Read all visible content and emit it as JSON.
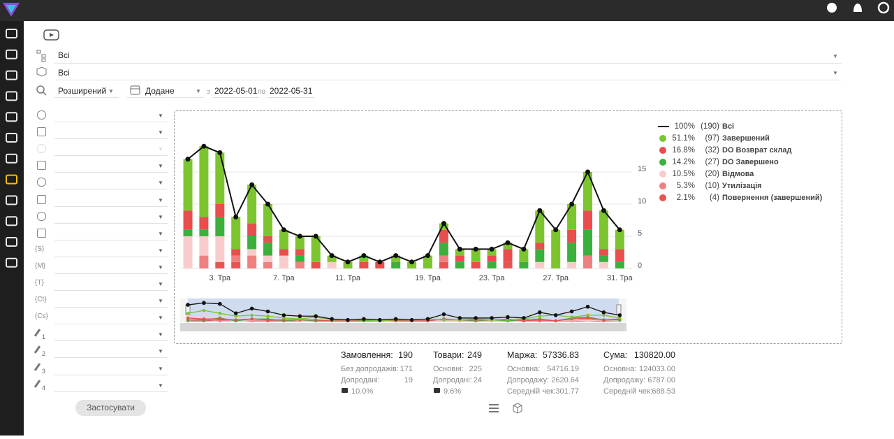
{
  "filters": {
    "scope": "Всі",
    "product": "Всі",
    "search_mode": "Розширений",
    "date_field": "Додане",
    "from_label": "з",
    "from": "2022-05-01",
    "to_label": "по",
    "to": "2022-05-31",
    "icon_labels": [
      "{S}",
      "{M}",
      "{T}",
      "{Ct}",
      "{Cs}",
      "1",
      "2",
      "3",
      "4"
    ],
    "apply": "Застосувати"
  },
  "chart_data": {
    "type": "bar",
    "stacked": true,
    "categories": [
      null,
      null,
      "3. Тра",
      null,
      null,
      null,
      "7. Тра",
      null,
      null,
      null,
      "11. Тра",
      null,
      null,
      null,
      null,
      "19. Тра",
      null,
      null,
      null,
      "23. Тра",
      null,
      null,
      null,
      "27. Тра",
      null,
      null,
      null,
      "31. Тра"
    ],
    "ylim": [
      0,
      21
    ],
    "yticks": [
      0,
      5,
      10,
      15
    ],
    "grid": true,
    "total": {
      "name": "Всі",
      "color": "#111111",
      "share": "100%",
      "count": "(190)",
      "values": [
        17,
        19,
        18,
        8,
        13,
        10,
        6,
        5,
        5,
        2,
        1,
        2,
        1,
        2,
        1,
        2,
        7,
        3,
        3,
        3,
        4,
        3,
        9,
        6,
        10,
        15,
        9,
        6
      ]
    },
    "series": [
      {
        "name": "Завершений",
        "color": "#7dc52e",
        "share": "51.1%",
        "count": "(97)",
        "values": [
          8,
          11,
          8,
          5,
          6,
          5,
          3,
          2,
          4,
          1,
          1,
          1,
          0,
          1,
          1,
          2,
          1,
          1,
          2,
          1,
          1,
          2,
          5,
          6,
          4,
          6,
          6,
          3
        ]
      },
      {
        "name": "DO Возврат склад",
        "color": "#e84e4e",
        "share": "16.8%",
        "count": "(32)",
        "values": [
          3,
          2,
          2,
          1,
          2,
          1,
          1,
          1,
          1,
          0,
          0,
          1,
          1,
          0,
          0,
          0,
          2,
          1,
          1,
          1,
          2,
          0,
          1,
          0,
          2,
          3,
          1,
          2
        ]
      },
      {
        "name": "DO Завершено",
        "color": "#3cb03c",
        "share": "14.2%",
        "count": "(27)",
        "values": [
          1,
          1,
          3,
          0,
          2,
          2,
          0,
          1,
          0,
          0,
          0,
          0,
          0,
          1,
          0,
          0,
          2,
          1,
          0,
          1,
          0,
          1,
          2,
          0,
          3,
          4,
          1,
          1
        ]
      },
      {
        "name": "Відмова",
        "color": "#f9cccc",
        "share": "10.5%",
        "count": "(20)",
        "values": [
          5,
          3,
          4,
          0,
          1,
          1,
          2,
          0,
          0,
          1,
          0,
          0,
          0,
          0,
          0,
          0,
          0,
          0,
          0,
          0,
          0,
          0,
          1,
          0,
          1,
          0,
          1,
          0
        ]
      },
      {
        "name": "Утилізація",
        "color": "#ef8080",
        "share": "5.3%",
        "count": "(10)",
        "values": [
          0,
          2,
          0,
          1,
          2,
          1,
          0,
          1,
          0,
          0,
          0,
          0,
          0,
          0,
          0,
          0,
          1,
          0,
          0,
          0,
          0,
          0,
          0,
          0,
          0,
          2,
          0,
          0
        ]
      },
      {
        "name": "Повернення (завершений)",
        "color": "#e85454",
        "share": "2.1%",
        "count": "(4)",
        "values": [
          0,
          0,
          1,
          1,
          0,
          0,
          0,
          0,
          0,
          0,
          0,
          0,
          0,
          0,
          0,
          0,
          1,
          0,
          0,
          0,
          1,
          0,
          0,
          0,
          0,
          0,
          0,
          0
        ]
      }
    ]
  },
  "summary": {
    "columns": [
      {
        "title": "Замовлення:",
        "value": "190",
        "rows": [
          [
            "Без допродажів:",
            "171"
          ],
          [
            "Допродані:",
            "19"
          ]
        ],
        "note": "10.0%"
      },
      {
        "title": "Товари:",
        "value": "249",
        "rows": [
          [
            "Основні:",
            "225"
          ],
          [
            "Допродані:",
            "24"
          ]
        ],
        "note": "9.6%"
      },
      {
        "title": "Маржа:",
        "value": "57336.83",
        "rows": [
          [
            "Основна:",
            "54716.19"
          ],
          [
            "Допродажу:",
            "2620.64"
          ],
          [
            "Середній чек:",
            "301.77"
          ]
        ]
      },
      {
        "title": "Сума:",
        "value": "130820.00",
        "rows": [
          [
            "Основна:",
            "124033.00"
          ],
          [
            "Допродажу:",
            "6787.00"
          ],
          [
            "Середній чек:",
            "688.53"
          ]
        ]
      }
    ]
  }
}
